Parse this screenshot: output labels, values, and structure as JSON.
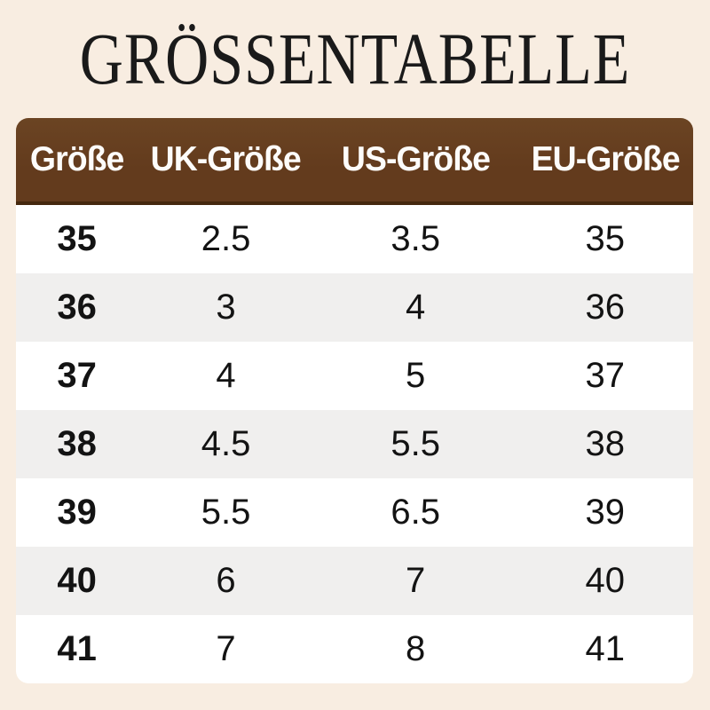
{
  "page": {
    "title": "GRÖSSENTABELLE",
    "background_color": "#f8ede1"
  },
  "table": {
    "header_bg_color": "#633b1d",
    "header_underline_color": "#45280e",
    "header_text_color": "#fdfcfa",
    "row_bg_color": "#ffffff",
    "row_alt_bg_color": "#f0efee",
    "columns": [
      "Größe",
      "UK-Größe",
      "US-Größe",
      "EU-Größe"
    ],
    "rows": [
      [
        "35",
        "2.5",
        "3.5",
        "35"
      ],
      [
        "36",
        "3",
        "4",
        "36"
      ],
      [
        "37",
        "4",
        "5",
        "37"
      ],
      [
        "38",
        "4.5",
        "5.5",
        "38"
      ],
      [
        "39",
        "5.5",
        "6.5",
        "39"
      ],
      [
        "40",
        "6",
        "7",
        "40"
      ],
      [
        "41",
        "7",
        "8",
        "41"
      ]
    ]
  },
  "chart_data": {
    "type": "table",
    "title": "GRÖSSENTABELLE",
    "columns": [
      "Größe",
      "UK-Größe",
      "US-Größe",
      "EU-Größe"
    ],
    "rows": [
      [
        "35",
        "2.5",
        "3.5",
        "35"
      ],
      [
        "36",
        "3",
        "4",
        "36"
      ],
      [
        "37",
        "4",
        "5",
        "37"
      ],
      [
        "38",
        "4.5",
        "5.5",
        "38"
      ],
      [
        "39",
        "5.5",
        "6.5",
        "39"
      ],
      [
        "40",
        "6",
        "7",
        "40"
      ],
      [
        "41",
        "7",
        "8",
        "41"
      ]
    ]
  }
}
